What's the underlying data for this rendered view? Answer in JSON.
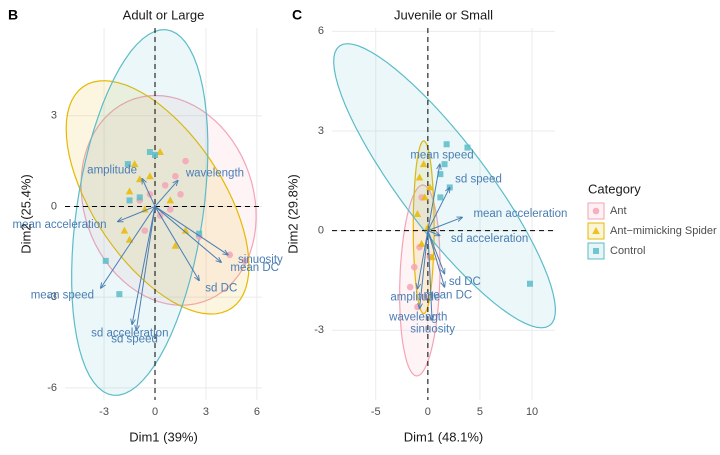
{
  "chart_data": [
    {
      "type": "biplot",
      "panel_label": "B",
      "title": "Adult or Large",
      "x_label": "Dim1 (39%)",
      "y_label": "Dim2 (25.4%)",
      "xlim": [
        -5.3,
        6.3
      ],
      "ylim": [
        -6.4,
        5.9
      ],
      "xticks": [
        -3,
        0,
        3,
        6
      ],
      "yticks": [
        -6,
        -3,
        0,
        3
      ],
      "grid": true,
      "series": [
        {
          "color": "#f4a3b6",
          "marker": "circle",
          "x": [
            1.8,
            1.2,
            0.6,
            -0.3,
            0.3,
            0.9,
            -0.6,
            2.6,
            4.4,
            5.3,
            -0.9,
            1.5
          ],
          "y": [
            1.5,
            1.0,
            0.7,
            0.4,
            -0.3,
            -0.1,
            -0.8,
            -1.0,
            -1.6,
            -1.8,
            0.2,
            0.4
          ],
          "ellipse": {
            "cx": 0.8,
            "cy": 0.2,
            "a": 5.2,
            "b": 3.4,
            "angle": -10
          }
        },
        {
          "color": "#e7b800",
          "marker": "triangle",
          "x": [
            -1.2,
            -1.5,
            -0.9,
            -0.3,
            0.3,
            1.2,
            1.8,
            -1.8,
            -1.5,
            0.9,
            -0.6
          ],
          "y": [
            1.4,
            0.5,
            0.9,
            1.0,
            1.8,
            -1.3,
            -0.8,
            -0.8,
            -1.1,
            0.2,
            -0.1
          ],
          "ellipse": {
            "cx": 0.15,
            "cy": 0.3,
            "a": 6.0,
            "b": 2.8,
            "angle": -30
          }
        },
        {
          "color": "#5bbcc9",
          "marker": "square",
          "x": [
            -0.3,
            -1.5,
            -2.9,
            -2.1,
            -0.9,
            0,
            2.6,
            -1.6
          ],
          "y": [
            1.8,
            0.2,
            -1.8,
            -2.9,
            0.3,
            1.7,
            -0.9,
            1.4
          ],
          "ellipse": {
            "cx": -0.9,
            "cy": -0.2,
            "a": 6.3,
            "b": 3.6,
            "angle": 70
          }
        }
      ],
      "vectors": [
        {
          "name": "amplitude",
          "x": -0.76,
          "y": 0.92
        },
        {
          "name": "wavelength",
          "x": 1.35,
          "y": 0.86
        },
        {
          "name": "mean acceleration",
          "x": -2.2,
          "y": -0.5
        },
        {
          "name": "sinuosity",
          "x": 4.3,
          "y": -1.6
        },
        {
          "name": "mean DC",
          "x": 3.9,
          "y": -1.85
        },
        {
          "name": "sd DC",
          "x": 2.6,
          "y": -2.45
        },
        {
          "name": "mean speed",
          "x": -3.2,
          "y": -2.7
        },
        {
          "name": "sd acceleration",
          "x": -1.35,
          "y": -3.9
        },
        {
          "name": "sd speed",
          "x": -1.1,
          "y": -4.1
        }
      ]
    },
    {
      "type": "biplot",
      "panel_label": "C",
      "title": "Juvenile or Small",
      "x_label": "Dim1 (48.1%)",
      "y_label": "Dim2 (29.8%)",
      "xlim": [
        -9.2,
        12.2
      ],
      "ylim": [
        -5.1,
        6.1
      ],
      "xticks": [
        -5,
        0,
        5,
        10
      ],
      "yticks": [
        -3,
        0,
        3,
        6
      ],
      "grid": true,
      "legend_title": "Category",
      "legend": "right",
      "series": [
        {
          "name": "Ant",
          "color": "#f4a3b6",
          "marker": "circle",
          "x": [
            -0.8,
            -1.3,
            -0.3,
            -1.7,
            0.2,
            -1.0,
            -0.6
          ],
          "y": [
            -0.5,
            -1.1,
            -2.0,
            -1.7,
            -0.8,
            -2.3,
            1.0
          ],
          "ellipse": {
            "cx": -0.77,
            "cy": -1.5,
            "a": 2.9,
            "b": 1.9,
            "angle": 80
          }
        },
        {
          "name": "Ant−mimicking Spider",
          "color": "#e7b800",
          "marker": "triangle",
          "x": [
            -0.8,
            -0.3,
            -1.0,
            0,
            -0.6,
            0.2,
            -0.4,
            0.4
          ],
          "y": [
            1.6,
            1.0,
            0.5,
            0.1,
            -0.4,
            1.3,
            2.0,
            -0.8
          ],
          "ellipse": {
            "cx": -0.4,
            "cy": 0.1,
            "a": 2.6,
            "b": 1.0,
            "angle": 90
          }
        },
        {
          "name": "Control",
          "color": "#5bbcc9",
          "marker": "square",
          "x": [
            1.8,
            3.8,
            2.1,
            1.2,
            9.8,
            1.2,
            1.6
          ],
          "y": [
            2.6,
            2.5,
            1.3,
            1.7,
            -1.6,
            1.0,
            2.0
          ],
          "ellipse": {
            "cx": 1.6,
            "cy": 1.35,
            "a": 11.3,
            "b": 1.95,
            "angle": -20
          }
        }
      ],
      "vectors": [
        {
          "name": "mean speed",
          "x": 1.15,
          "y": 2.0
        },
        {
          "name": "sd speed",
          "x": 2.1,
          "y": 1.3
        },
        {
          "name": "mean acceleration",
          "x": 3.3,
          "y": 0.4
        },
        {
          "name": "sd acceleration",
          "x": 1.15,
          "y": -0.15
        },
        {
          "name": "sd DC",
          "x": 1.6,
          "y": -1.3
        },
        {
          "name": "mean DC",
          "x": 1.6,
          "y": -1.7
        },
        {
          "name": "amplitude",
          "x": -1.0,
          "y": -1.75
        },
        {
          "name": "wavelength",
          "x": -0.8,
          "y": -2.35
        },
        {
          "name": "sinuosity",
          "x": 0.4,
          "y": -2.7
        }
      ]
    }
  ]
}
